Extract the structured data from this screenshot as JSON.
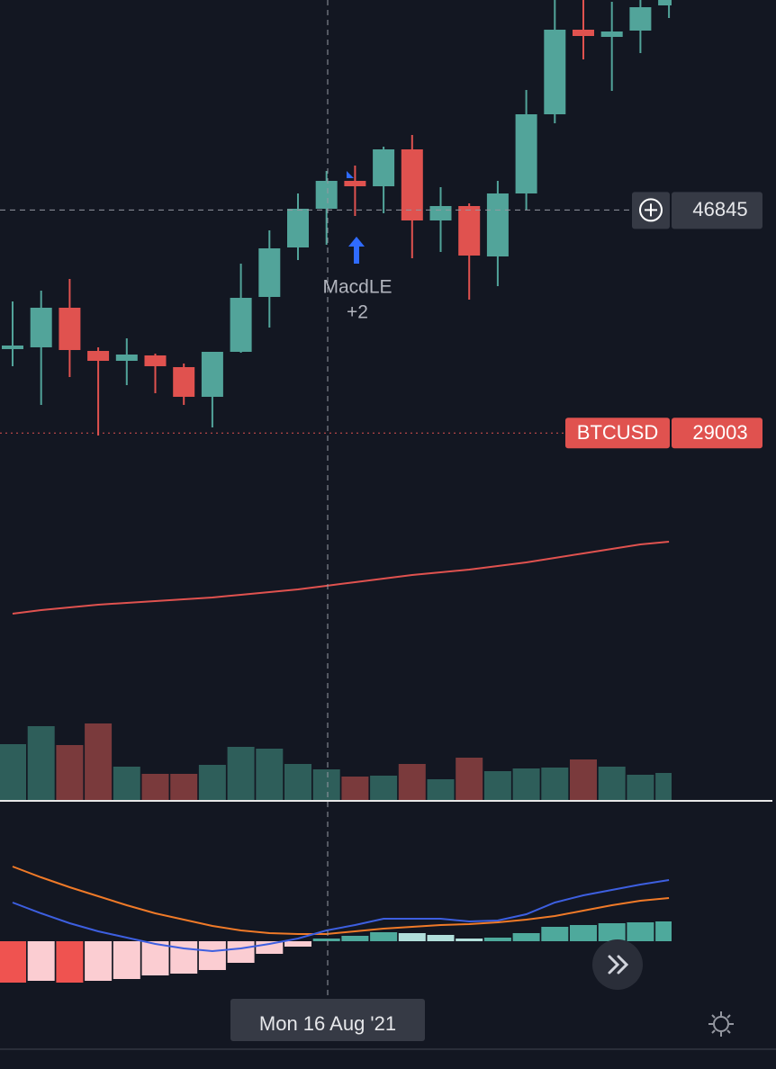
{
  "chart_data": {
    "type": "candlestick",
    "ylim": [
      0,
      63650
    ],
    "up_color": "#52a49a",
    "down_color": "#e0524f",
    "candles": {
      "open": [
        35714,
        35858,
        39026,
        35570,
        34778,
        35210,
        34274,
        31898,
        35498,
        39890,
        43850,
        46946,
        49178,
        48746,
        51698,
        46010,
        47162,
        43130,
        48170,
        54506,
        61274,
        60698,
        61202,
        63218
      ],
      "high": [
        39530,
        40394,
        41330,
        35858,
        36578,
        35354,
        34562,
        35498,
        42554,
        45218,
        48170,
        49970,
        50402,
        51914,
        52850,
        48674,
        47378,
        49178,
        56450,
        63650,
        63650,
        63506,
        63650,
        63650
      ],
      "low": [
        34346,
        31250,
        33482,
        28802,
        32834,
        32186,
        31250,
        29450,
        35426,
        37442,
        42842,
        44066,
        46370,
        46586,
        42986,
        43490,
        39674,
        40754,
        46874,
        53786,
        58898,
        56378,
        59402,
        62210
      ],
      "close": [
        36002,
        39026,
        35642,
        34778,
        35282,
        34346,
        31898,
        35498,
        39818,
        43778,
        46946,
        49178,
        48746,
        51698,
        46010,
        47162,
        43202,
        48170,
        54506,
        61274,
        60770,
        61130,
        63074,
        63650
      ]
    },
    "ma": {
      "color": "#e0524f",
      "values": [
        14546,
        14834,
        15050,
        15266,
        15410,
        15554,
        15698,
        15842,
        16058,
        16274,
        16490,
        16778,
        17066,
        17354,
        17642,
        17858,
        18074,
        18362,
        18650,
        19010,
        19370,
        19730,
        20090,
        20306
      ]
    },
    "volume": {
      "ylim": [
        0,
        90
      ],
      "up_color": "#2e5e5a",
      "down_color": "#7a3a3c",
      "values": [
        63,
        83,
        62,
        86,
        38,
        30,
        30,
        40,
        60,
        58,
        41,
        35,
        27,
        28,
        41,
        24,
        48,
        33,
        36,
        37,
        46,
        38,
        29,
        31
      ]
    },
    "macd": {
      "ylim": [
        -54,
        156
      ],
      "macd_color": "#3d5fe0",
      "signal_color": "#f07a28",
      "histogram_colors": {
        "fall_below": "#ef5350",
        "grow_below": "#fbcdd2",
        "grow_above": "#4ea99c",
        "fall_above": "#b2dfdb"
      },
      "histogram": [
        -46,
        -44,
        -46,
        -44,
        -42,
        -38,
        -36,
        -32,
        -24,
        -14,
        -6,
        3,
        6,
        10,
        9,
        7,
        3,
        4,
        9,
        16,
        18,
        20,
        21,
        22
      ],
      "macd": [
        43,
        31,
        20,
        11,
        4,
        -3,
        -8,
        -11,
        -8,
        -3,
        3,
        12,
        18,
        25,
        25,
        25,
        22,
        23,
        30,
        43,
        51,
        57,
        63,
        68
      ],
      "signal": [
        83,
        71,
        60,
        50,
        40,
        31,
        24,
        17,
        12,
        9,
        8,
        8,
        11,
        14,
        16,
        18,
        19,
        21,
        24,
        28,
        34,
        40,
        45,
        48
      ]
    },
    "crosshair": {
      "price": 46845,
      "date": "Mon 16 Aug '21"
    },
    "price_line": {
      "name": "BTCUSD",
      "value": 29003,
      "color": "#e0524f"
    },
    "signal": {
      "name": "MacdLE",
      "label": "+2",
      "color": "#2f6bff"
    }
  }
}
